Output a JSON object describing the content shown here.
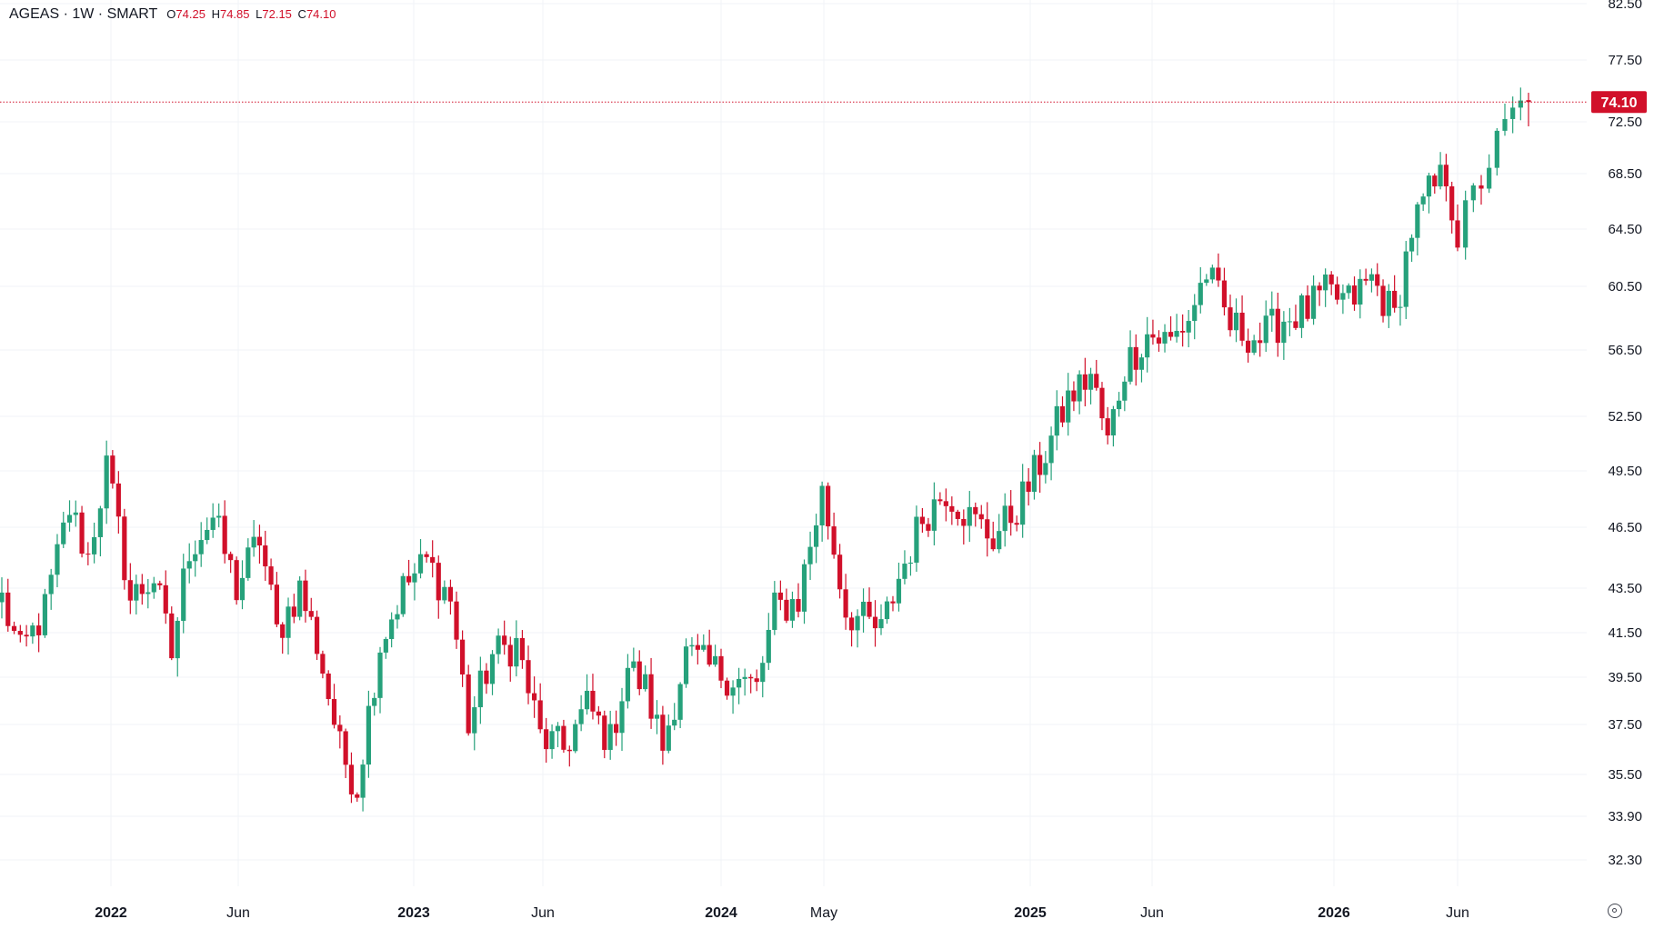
{
  "legend": {
    "symbol": "AGEAS · 1W · SMART",
    "open_label": "O",
    "open": "74.25",
    "high_label": "H",
    "high": "74.85",
    "low_label": "L",
    "low": "72.15",
    "close_label": "C",
    "close": "74.10"
  },
  "colors": {
    "up": "#26a17b",
    "down": "#d1102a",
    "grid": "#f0f3f7",
    "text": "#131722",
    "price_line": "#d1102a"
  },
  "chart_data": {
    "type": "candlestick",
    "timeframe": "weekly",
    "y_ticks": [
      82.5,
      77.5,
      72.5,
      68.5,
      64.5,
      60.5,
      56.5,
      52.5,
      49.5,
      46.5,
      43.5,
      41.5,
      39.5,
      37.5,
      35.5,
      33.9,
      32.3
    ],
    "y_tick_labels": [
      "82.50",
      "77.50",
      "72.50",
      "68.50",
      "64.50",
      "60.50",
      "56.50",
      "52.50",
      "49.50",
      "46.50",
      "43.50",
      "41.50",
      "39.50",
      "37.50",
      "35.50",
      "33.90",
      "32.30"
    ],
    "x_ticks": [
      {
        "label": "2022",
        "year": true,
        "date": "2022-01-01"
      },
      {
        "label": "Jun",
        "year": false,
        "date": "2022-06-01"
      },
      {
        "label": "2023",
        "year": true,
        "date": "2023-01-01"
      },
      {
        "label": "Jun",
        "year": false,
        "date": "2023-06-01"
      },
      {
        "label": "2024",
        "year": true,
        "date": "2024-01-01"
      },
      {
        "label": "May",
        "year": false,
        "date": "2024-05-01"
      },
      {
        "label": "2025",
        "year": true,
        "date": "2025-01-01"
      },
      {
        "label": "Jun",
        "year": false,
        "date": "2025-06-01"
      },
      {
        "label": "2026",
        "year": true,
        "date": "2026-01-01"
      },
      {
        "label": "Jun",
        "year": false,
        "date": "2026-06-01"
      }
    ],
    "last_price": 74.1,
    "last_price_label": "74.10",
    "keypoints": [
      [
        "2021-08-30",
        43.0
      ],
      [
        "2021-09-20",
        40.5
      ],
      [
        "2021-10-18",
        42.5
      ],
      [
        "2021-11-15",
        47.5
      ],
      [
        "2021-12-06",
        45.0
      ],
      [
        "2021-12-27",
        49.7
      ],
      [
        "2022-01-24",
        43.0
      ],
      [
        "2022-02-21",
        44.0
      ],
      [
        "2022-03-14",
        40.5
      ],
      [
        "2022-04-04",
        45.5
      ],
      [
        "2022-05-02",
        47.0
      ],
      [
        "2022-05-30",
        43.5
      ],
      [
        "2022-06-27",
        46.0
      ],
      [
        "2022-07-18",
        41.5
      ],
      [
        "2022-08-15",
        43.5
      ],
      [
        "2022-09-05",
        41.0
      ],
      [
        "2022-10-03",
        36.5
      ],
      [
        "2022-10-24",
        35.0
      ],
      [
        "2022-11-21",
        41.0
      ],
      [
        "2022-12-19",
        43.5
      ],
      [
        "2023-01-16",
        44.8
      ],
      [
        "2023-02-13",
        43.0
      ],
      [
        "2023-03-06",
        37.5
      ],
      [
        "2023-04-03",
        40.5
      ],
      [
        "2023-05-01",
        41.0
      ],
      [
        "2023-05-29",
        37.0
      ],
      [
        "2023-06-26",
        36.5
      ],
      [
        "2023-07-24",
        38.3
      ],
      [
        "2023-08-21",
        36.8
      ],
      [
        "2023-09-11",
        40.0
      ],
      [
        "2023-10-02",
        39.0
      ],
      [
        "2023-10-23",
        36.6
      ],
      [
        "2023-11-20",
        40.5
      ],
      [
        "2023-12-18",
        39.9
      ],
      [
        "2024-01-15",
        39.5
      ],
      [
        "2024-02-12",
        39.0
      ],
      [
        "2024-03-04",
        42.5
      ],
      [
        "2024-04-01",
        43.0
      ],
      [
        "2024-04-29",
        48.3
      ],
      [
        "2024-05-27",
        42.5
      ],
      [
        "2024-06-17",
        42.0
      ],
      [
        "2024-07-08",
        41.5
      ],
      [
        "2024-07-29",
        44.0
      ],
      [
        "2024-08-26",
        47.0
      ],
      [
        "2024-09-23",
        48.5
      ],
      [
        "2024-10-21",
        47.0
      ],
      [
        "2024-11-18",
        46.0
      ],
      [
        "2024-12-16",
        47.5
      ],
      [
        "2025-01-20",
        50.5
      ],
      [
        "2025-02-17",
        53.5
      ],
      [
        "2025-03-17",
        55.0
      ],
      [
        "2025-04-07",
        51.0
      ],
      [
        "2025-04-28",
        55.5
      ],
      [
        "2025-05-26",
        57.5
      ],
      [
        "2025-06-23",
        57.0
      ],
      [
        "2025-07-14",
        58.5
      ],
      [
        "2025-08-04",
        61.5
      ],
      [
        "2025-09-01",
        58.0
      ],
      [
        "2025-10-06",
        57.2
      ],
      [
        "2025-11-03",
        58.5
      ],
      [
        "2025-12-01",
        59.0
      ],
      [
        "2025-12-22",
        60.0
      ],
      [
        "2026-01-19",
        59.5
      ],
      [
        "2026-02-16",
        61.0
      ],
      [
        "2026-03-16",
        58.5
      ],
      [
        "2026-04-06",
        64.5
      ],
      [
        "2026-04-27",
        67.0
      ],
      [
        "2026-05-18",
        68.5
      ],
      [
        "2026-06-01",
        64.0
      ],
      [
        "2026-06-29",
        69.5
      ],
      [
        "2026-07-20",
        73.0
      ],
      [
        "2026-08-03",
        74.1
      ]
    ]
  }
}
